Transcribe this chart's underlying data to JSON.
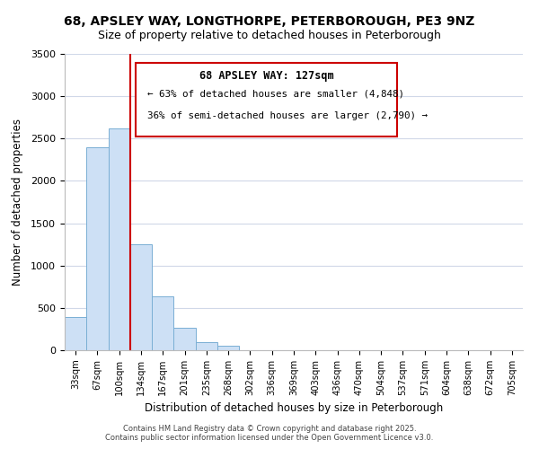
{
  "title1": "68, APSLEY WAY, LONGTHORPE, PETERBOROUGH, PE3 9NZ",
  "title2": "Size of property relative to detached houses in Peterborough",
  "xlabel": "Distribution of detached houses by size in Peterborough",
  "ylabel": "Number of detached properties",
  "categories": [
    "33sqm",
    "67sqm",
    "100sqm",
    "134sqm",
    "167sqm",
    "201sqm",
    "235sqm",
    "268sqm",
    "302sqm",
    "336sqm",
    "369sqm",
    "403sqm",
    "436sqm",
    "470sqm",
    "504sqm",
    "537sqm",
    "571sqm",
    "604sqm",
    "638sqm",
    "672sqm",
    "705sqm"
  ],
  "values": [
    390,
    2400,
    2620,
    1250,
    640,
    270,
    100,
    50,
    0,
    0,
    0,
    0,
    0,
    0,
    0,
    0,
    0,
    0,
    0,
    0,
    0
  ],
  "bar_color": "#cde0f5",
  "bar_edge_color": "#7aafd4",
  "vline_color": "#cc0000",
  "annotation_title": "68 APSLEY WAY: 127sqm",
  "annotation_line2": "← 63% of detached houses are smaller (4,848)",
  "annotation_line3": "36% of semi-detached houses are larger (2,790) →",
  "annotation_box_color": "#ffffff",
  "annotation_box_edge": "#cc0000",
  "ylim": [
    0,
    3500
  ],
  "yticks": [
    0,
    500,
    1000,
    1500,
    2000,
    2500,
    3000,
    3500
  ],
  "footer1": "Contains HM Land Registry data © Crown copyright and database right 2025.",
  "footer2": "Contains public sector information licensed under the Open Government Licence v3.0.",
  "bg_color": "#ffffff",
  "grid_color": "#d0d8e8"
}
